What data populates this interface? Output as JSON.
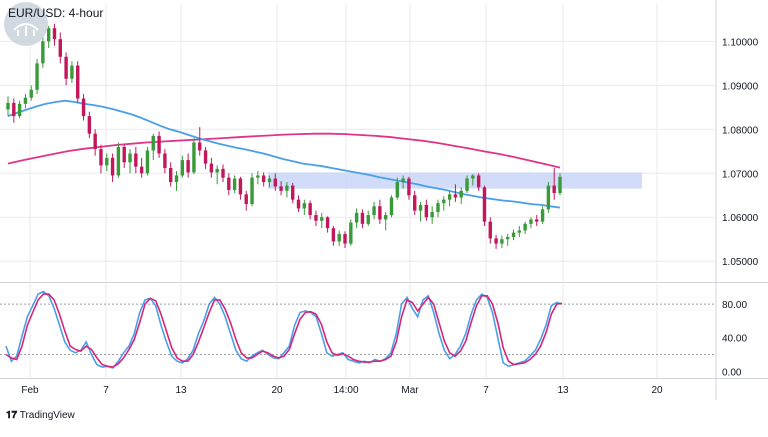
{
  "chart_data": {
    "type": "candlestick",
    "title": "EUR/USD: 4-hour",
    "price_panel": {
      "ylim": [
        1.0455,
        1.1085
      ],
      "y_ticks": [
        "1.10000",
        "1.09000",
        "1.08000",
        "1.07000",
        "1.06000",
        "1.05000"
      ],
      "y_tick_values": [
        1.1,
        1.09,
        1.08,
        1.07,
        1.06,
        1.05
      ],
      "candles": [
        [
          1.0845,
          1.0875,
          1.083,
          1.086
        ],
        [
          1.086,
          1.087,
          1.0815,
          1.083
        ],
        [
          1.083,
          1.0865,
          1.0825,
          1.0858
        ],
        [
          1.0858,
          1.088,
          1.0848,
          1.0872
        ],
        [
          1.0872,
          1.09,
          1.0865,
          1.089
        ],
        [
          1.089,
          1.096,
          1.088,
          1.095
        ],
        [
          1.095,
          1.101,
          1.094,
          1.1
        ],
        [
          1.1,
          1.1035,
          1.0985,
          1.103
        ],
        [
          1.103,
          1.104,
          1.099,
          1.1005
        ],
        [
          1.1005,
          1.102,
          1.095,
          1.0965
        ],
        [
          1.0965,
          1.0975,
          1.09,
          1.0915
        ],
        [
          1.0915,
          1.0955,
          1.0905,
          1.0945
        ],
        [
          1.0945,
          1.0955,
          1.086,
          1.087
        ],
        [
          1.087,
          1.088,
          1.082,
          1.083
        ],
        [
          1.083,
          1.084,
          1.078,
          1.079
        ],
        [
          1.079,
          1.08,
          1.074,
          1.0755
        ],
        [
          1.0755,
          1.0765,
          1.07,
          1.0718
        ],
        [
          1.0718,
          1.0745,
          1.0705,
          1.0735
        ],
        [
          1.0735,
          1.0745,
          1.068,
          1.0695
        ],
        [
          1.0695,
          1.077,
          1.069,
          1.076
        ],
        [
          1.076,
          1.0765,
          1.0712,
          1.0725
        ],
        [
          1.0725,
          1.0755,
          1.07,
          1.0745
        ],
        [
          1.0745,
          1.076,
          1.07,
          1.0715
        ],
        [
          1.0715,
          1.0735,
          1.069,
          1.07
        ],
        [
          1.07,
          1.076,
          1.0695,
          1.0752
        ],
        [
          1.0752,
          1.079,
          1.073,
          1.0785
        ],
        [
          1.0785,
          1.0795,
          1.0735,
          1.0745
        ],
        [
          1.0745,
          1.0755,
          1.07,
          1.0712
        ],
        [
          1.0712,
          1.0725,
          1.067,
          1.068
        ],
        [
          1.068,
          1.0705,
          1.066,
          1.0695
        ],
        [
          1.0695,
          1.074,
          1.069,
          1.073
        ],
        [
          1.073,
          1.0745,
          1.069,
          1.0702
        ],
        [
          1.0702,
          1.078,
          1.0698,
          1.077
        ],
        [
          1.077,
          1.0805,
          1.074,
          1.0752
        ],
        [
          1.0752,
          1.076,
          1.071,
          1.0722
        ],
        [
          1.0722,
          1.0735,
          1.069,
          1.0702
        ],
        [
          1.0702,
          1.0718,
          1.0675,
          1.071
        ],
        [
          1.071,
          1.072,
          1.068,
          1.069
        ],
        [
          1.069,
          1.07,
          1.065,
          1.0662
        ],
        [
          1.0662,
          1.0695,
          1.0655,
          1.0688
        ],
        [
          1.0688,
          1.0692,
          1.064,
          1.0652
        ],
        [
          1.0652,
          1.066,
          1.0615,
          1.063
        ],
        [
          1.063,
          1.07,
          1.0625,
          1.069
        ],
        [
          1.069,
          1.0705,
          1.0675,
          1.0695
        ],
        [
          1.0695,
          1.0702,
          1.067,
          1.068
        ],
        [
          1.068,
          1.0695,
          1.0668,
          1.0688
        ],
        [
          1.0688,
          1.07,
          1.066,
          1.067
        ],
        [
          1.067,
          1.0682,
          1.065,
          1.066
        ],
        [
          1.066,
          1.068,
          1.0645,
          1.0672
        ],
        [
          1.0672,
          1.0678,
          1.0632,
          1.064
        ],
        [
          1.064,
          1.065,
          1.0612,
          1.062
        ],
        [
          1.062,
          1.064,
          1.0605,
          1.0632
        ],
        [
          1.0632,
          1.0638,
          1.0595,
          1.0605
        ],
        [
          1.0605,
          1.0615,
          1.058,
          1.0592
        ],
        [
          1.0592,
          1.061,
          1.0575,
          1.06
        ],
        [
          1.06,
          1.0602,
          1.0565,
          1.0575
        ],
        [
          1.0575,
          1.058,
          1.0535,
          1.0545
        ],
        [
          1.0545,
          1.057,
          1.0535,
          1.0562
        ],
        [
          1.0562,
          1.0568,
          1.053,
          1.054
        ],
        [
          1.054,
          1.0595,
          1.0535,
          1.0588
        ],
        [
          1.0588,
          1.062,
          1.0575,
          1.061
        ],
        [
          1.061,
          1.0618,
          1.0575,
          1.0585
        ],
        [
          1.0585,
          1.0615,
          1.058,
          1.0605
        ],
        [
          1.0605,
          1.0635,
          1.0595,
          1.0625
        ],
        [
          1.0625,
          1.064,
          1.0585,
          1.0595
        ],
        [
          1.0595,
          1.0612,
          1.057,
          1.0605
        ],
        [
          1.0605,
          1.065,
          1.06,
          1.0645
        ],
        [
          1.0645,
          1.069,
          1.064,
          1.068
        ],
        [
          1.068,
          1.0695,
          1.0665,
          1.0688
        ],
        [
          1.0688,
          1.0692,
          1.064,
          1.065
        ],
        [
          1.065,
          1.066,
          1.0605,
          1.0615
        ],
        [
          1.0615,
          1.0635,
          1.059,
          1.0628
        ],
        [
          1.0628,
          1.064,
          1.0592,
          1.06
        ],
        [
          1.06,
          1.0625,
          1.0585,
          1.0612
        ],
        [
          1.0612,
          1.064,
          1.06,
          1.0632
        ],
        [
          1.0632,
          1.0648,
          1.0615,
          1.064
        ],
        [
          1.064,
          1.066,
          1.0625,
          1.0652
        ],
        [
          1.0652,
          1.0675,
          1.0635,
          1.0645
        ],
        [
          1.0645,
          1.0668,
          1.063,
          1.066
        ],
        [
          1.066,
          1.0695,
          1.0655,
          1.0688
        ],
        [
          1.0688,
          1.0698,
          1.0672,
          1.0695
        ],
        [
          1.0695,
          1.07,
          1.066,
          1.0668
        ],
        [
          1.0668,
          1.0672,
          1.058,
          1.059
        ],
        [
          1.059,
          1.06,
          1.054,
          1.0552
        ],
        [
          1.0552,
          1.056,
          1.0528,
          1.054
        ],
        [
          1.054,
          1.0558,
          1.053,
          1.055
        ],
        [
          1.055,
          1.0562,
          1.0535,
          1.0555
        ],
        [
          1.0555,
          1.0572,
          1.0548,
          1.0565
        ],
        [
          1.0565,
          1.058,
          1.0555,
          1.057
        ],
        [
          1.057,
          1.059,
          1.0562,
          1.0585
        ],
        [
          1.0585,
          1.06,
          1.0575,
          1.0595
        ],
        [
          1.0595,
          1.0605,
          1.058,
          1.059
        ],
        [
          1.059,
          1.0625,
          1.0585,
          1.0618
        ],
        [
          1.0618,
          1.068,
          1.061,
          1.0672
        ],
        [
          1.0672,
          1.0712,
          1.064,
          1.0655
        ],
        [
          1.0655,
          1.07,
          1.065,
          1.0692
        ]
      ],
      "ema_blue": [
        1.083,
        1.0838,
        1.0845,
        1.0852,
        1.0858,
        1.0862,
        1.0865,
        1.0862,
        1.0858,
        1.0855,
        1.0851,
        1.0846,
        1.084,
        1.0834,
        1.0826,
        1.0817,
        1.0808,
        1.08,
        1.0794,
        1.0787,
        1.078,
        1.0774,
        1.0768,
        1.0763,
        1.0758,
        1.0754,
        1.0749,
        1.0744,
        1.0738,
        1.0732,
        1.0727,
        1.0722,
        1.0719,
        1.0716,
        1.0712,
        1.0708,
        1.0704,
        1.07,
        1.0696,
        1.0691,
        1.0687,
        1.0683,
        1.0679,
        1.0675,
        1.067,
        1.0666,
        1.0662,
        1.0657,
        1.0652,
        1.0648,
        1.0644,
        1.0641,
        1.0638,
        1.0636,
        1.0633,
        1.063,
        1.0628,
        1.0625,
        1.0622
      ],
      "ema_pink": [
        1.0722,
        1.073,
        1.0737,
        1.0744,
        1.0751,
        1.0756,
        1.076,
        1.0764,
        1.0767,
        1.077,
        1.0772,
        1.0774,
        1.0776,
        1.0778,
        1.078,
        1.0782,
        1.0784,
        1.0786,
        1.0788,
        1.0789,
        1.079,
        1.079,
        1.0789,
        1.0787,
        1.0785,
        1.0782,
        1.0778,
        1.0774,
        1.0769,
        1.0763,
        1.0757,
        1.075,
        1.0744,
        1.0737,
        1.0729,
        1.0721,
        1.0713
      ],
      "zone": {
        "low": 1.0665,
        "high": 1.0702
      }
    },
    "oscillator_panel": {
      "ylim": [
        -8,
        104
      ],
      "y_ticks": [
        "80.00",
        "40.00",
        "0.00"
      ],
      "y_tick_values": [
        80,
        40,
        0
      ],
      "levels": [
        80,
        20
      ],
      "k_line": [
        30,
        12,
        18,
        42,
        65,
        78,
        92,
        95,
        90,
        75,
        55,
        35,
        25,
        22,
        25,
        35,
        20,
        8,
        5,
        6,
        4,
        12,
        22,
        30,
        45,
        70,
        85,
        87,
        78,
        55,
        35,
        18,
        12,
        10,
        15,
        25,
        45,
        60,
        80,
        88,
        80,
        65,
        45,
        25,
        15,
        12,
        18,
        22,
        25,
        20,
        16,
        15,
        22,
        30,
        55,
        70,
        72,
        70,
        65,
        45,
        22,
        18,
        20,
        22,
        14,
        12,
        10,
        12,
        10,
        14,
        12,
        15,
        22,
        45,
        80,
        88,
        75,
        65,
        85,
        90,
        70,
        45,
        25,
        15,
        20,
        30,
        45,
        68,
        85,
        92,
        88,
        70,
        40,
        10,
        6,
        8,
        10,
        12,
        18,
        25,
        38,
        55,
        78,
        82,
        80
      ],
      "d_line": [
        20,
        16,
        14,
        30,
        55,
        70,
        85,
        92,
        92,
        85,
        68,
        48,
        30,
        26,
        24,
        30,
        26,
        16,
        8,
        6,
        5,
        9,
        16,
        26,
        38,
        58,
        80,
        87,
        84,
        68,
        48,
        28,
        16,
        12,
        12,
        20,
        35,
        52,
        70,
        85,
        85,
        74,
        58,
        38,
        22,
        16,
        16,
        20,
        24,
        22,
        18,
        16,
        18,
        26,
        45,
        62,
        70,
        71,
        68,
        56,
        35,
        22,
        19,
        21,
        18,
        14,
        12,
        11,
        11,
        12,
        12,
        14,
        18,
        35,
        65,
        85,
        82,
        72,
        80,
        88,
        80,
        58,
        36,
        22,
        18,
        24,
        36,
        58,
        78,
        90,
        90,
        80,
        58,
        28,
        12,
        8,
        9,
        10,
        14,
        20,
        30,
        46,
        68,
        80,
        81
      ]
    },
    "x_ticks": [
      "Feb",
      "7",
      "13",
      "20",
      "14:00",
      "Mar",
      "7",
      "13",
      "20"
    ],
    "colors": {
      "up": "#26a69a",
      "up_candle": "#3a9a3a",
      "down_candle": "#c2185b",
      "ema_blue": "#4a9fe8",
      "ema_pink": "#e0338a",
      "zone": "#c9d6f7",
      "osc_k": "#4a9fe8",
      "osc_d": "#d6267a",
      "grid": "#e8eaef"
    }
  },
  "watermark": "TradingView"
}
